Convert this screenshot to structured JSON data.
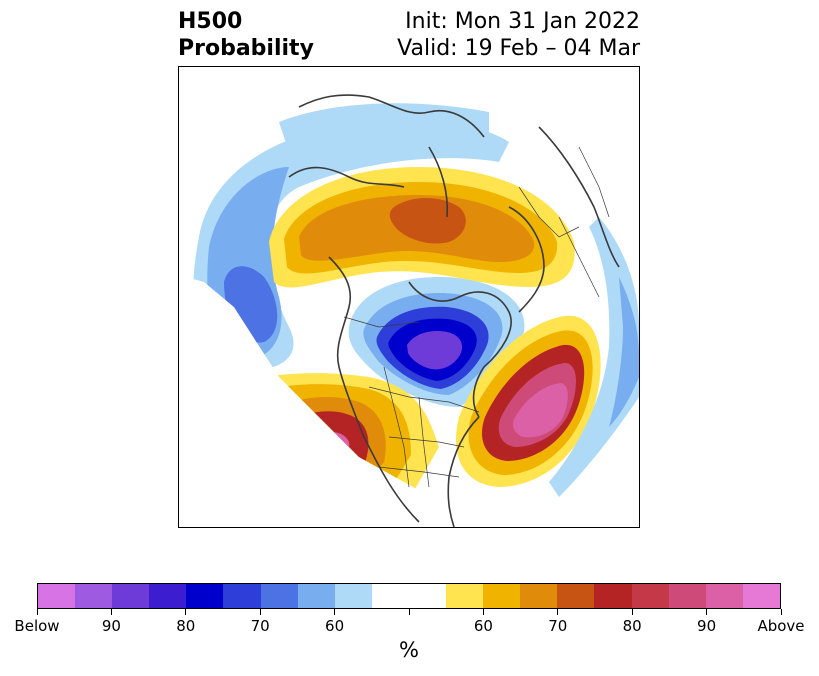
{
  "title": {
    "line1": "H500",
    "line2": "Probability",
    "init": "Init: Mon 31 Jan 2022",
    "valid": "Valid: 19 Feb – 04 Mar"
  },
  "colorbar": {
    "colors": [
      "#d873e6",
      "#9e5ae0",
      "#6e3ad8",
      "#3c1ed0",
      "#0000cc",
      "#2e3ed8",
      "#4c72e4",
      "#78aef0",
      "#aedaf8",
      "#ffffff",
      "#ffffff",
      "#ffe450",
      "#f0b400",
      "#e08c0a",
      "#c85414",
      "#b42424",
      "#c43848",
      "#ce4a78",
      "#dc60a6",
      "#e678d6"
    ],
    "tick_labels": [
      "Below",
      "90",
      "80",
      "70",
      "60",
      "",
      "60",
      "70",
      "80",
      "90",
      "Above"
    ],
    "unit": "%"
  },
  "map": {
    "colors": {
      "light_blue": "#aedaf8",
      "mid_blue": "#78aef0",
      "blue": "#4c72e4",
      "deep_blue": "#2e3ed8",
      "navy": "#0000cc",
      "indigo": "#3c1ed0",
      "purple": "#6e3ad8",
      "violet": "#9e5ae0",
      "yellow": "#ffe450",
      "gold": "#f0b400",
      "orange": "#e08c0a",
      "dark_orange": "#c85414",
      "red": "#b42424",
      "crimson": "#c43848",
      "rose": "#ce4a78",
      "pink": "#dc60a6"
    }
  }
}
